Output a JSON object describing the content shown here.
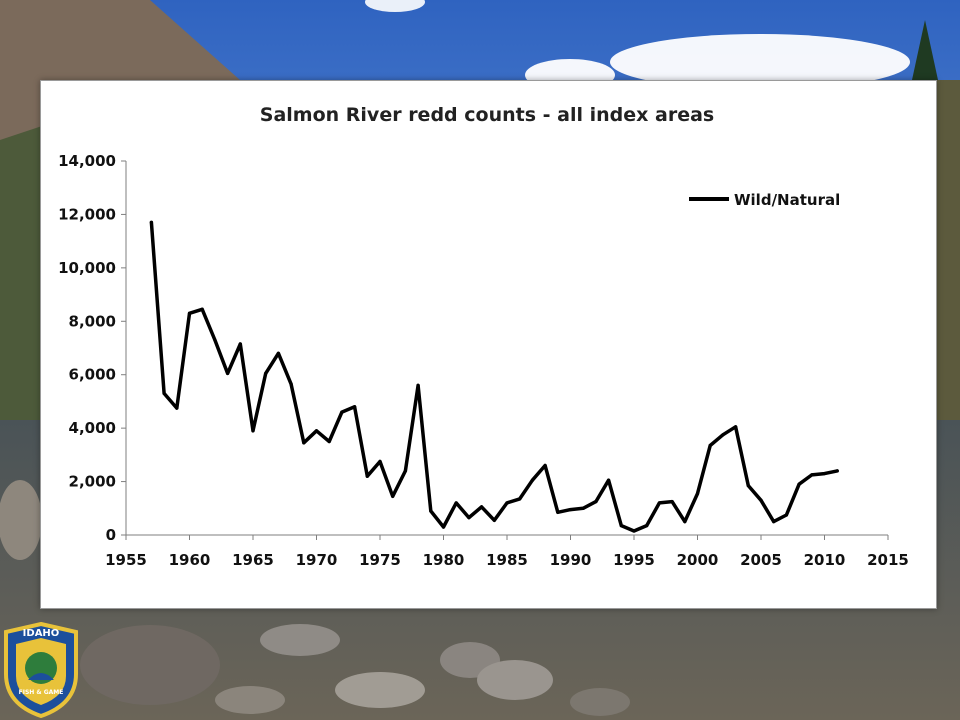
{
  "background": {
    "sky": "#3f72c8",
    "water": "#5a5f62",
    "rock": "#7b6a5b"
  },
  "logo": {
    "name": "idaho-fish-and-game-logo",
    "text_top": "IDAHO",
    "text_bottom": "FISH & GAME"
  },
  "chart_data": {
    "type": "line",
    "title": "Salmon River redd counts - all index areas",
    "xlabel": "",
    "ylabel": "",
    "xlim": [
      1955,
      2015
    ],
    "ylim": [
      0,
      14000
    ],
    "x_ticks": [
      "1955",
      "1960",
      "1965",
      "1970",
      "1975",
      "1980",
      "1985",
      "1990",
      "1995",
      "2000",
      "2005",
      "2010",
      "2015"
    ],
    "y_ticks": [
      "0",
      "2,000",
      "4,000",
      "6,000",
      "8,000",
      "10,000",
      "12,000",
      "14,000"
    ],
    "legend_position": "top-right",
    "line_color": "#000000",
    "series": [
      {
        "name": "Wild/Natural",
        "x": [
          1957,
          1958,
          1959,
          1960,
          1961,
          1962,
          1963,
          1964,
          1965,
          1966,
          1967,
          1968,
          1969,
          1970,
          1971,
          1972,
          1973,
          1974,
          1975,
          1976,
          1977,
          1978,
          1979,
          1980,
          1981,
          1982,
          1983,
          1984,
          1985,
          1986,
          1987,
          1988,
          1989,
          1990,
          1991,
          1992,
          1993,
          1994,
          1995,
          1996,
          1997,
          1998,
          1999,
          2000,
          2001,
          2002,
          2003,
          2004,
          2005,
          2006,
          2007,
          2008,
          2009,
          2010,
          2011
        ],
        "values": [
          11700,
          5300,
          4750,
          8300,
          8450,
          7300,
          6050,
          7150,
          3900,
          6050,
          6800,
          5650,
          3450,
          3900,
          3500,
          4600,
          4800,
          2200,
          2750,
          1450,
          2400,
          5600,
          900,
          300,
          1200,
          650,
          1050,
          550,
          1200,
          1350,
          2050,
          2600,
          850,
          950,
          1000,
          1250,
          2050,
          350,
          150,
          350,
          1200,
          1250,
          500,
          1550,
          3350,
          3750,
          4050,
          1850,
          1300,
          500,
          750,
          1900,
          2250,
          2300,
          2400
        ]
      }
    ]
  }
}
